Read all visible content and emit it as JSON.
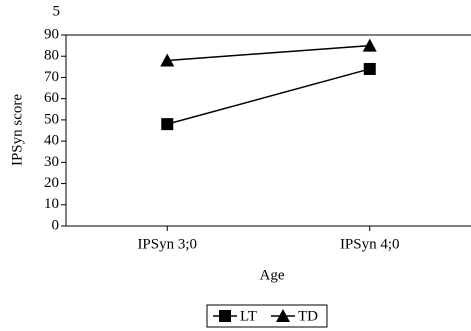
{
  "chart_data": {
    "type": "line",
    "annotation": "5",
    "x_label": "Age",
    "y_label": "IPSyn score",
    "categories": [
      "IPSyn 3;0",
      "IPSyn 4;0"
    ],
    "series": [
      {
        "name": "LT",
        "color": "#000000",
        "marker": "square",
        "values": [
          48,
          74
        ]
      },
      {
        "name": "TD",
        "color": "#000000",
        "marker": "triangle",
        "values": [
          78,
          85
        ]
      }
    ],
    "ylim": [
      0,
      90
    ],
    "yticks": [
      0,
      10,
      20,
      30,
      40,
      50,
      60,
      70,
      80,
      90
    ],
    "legend": "bottom"
  }
}
